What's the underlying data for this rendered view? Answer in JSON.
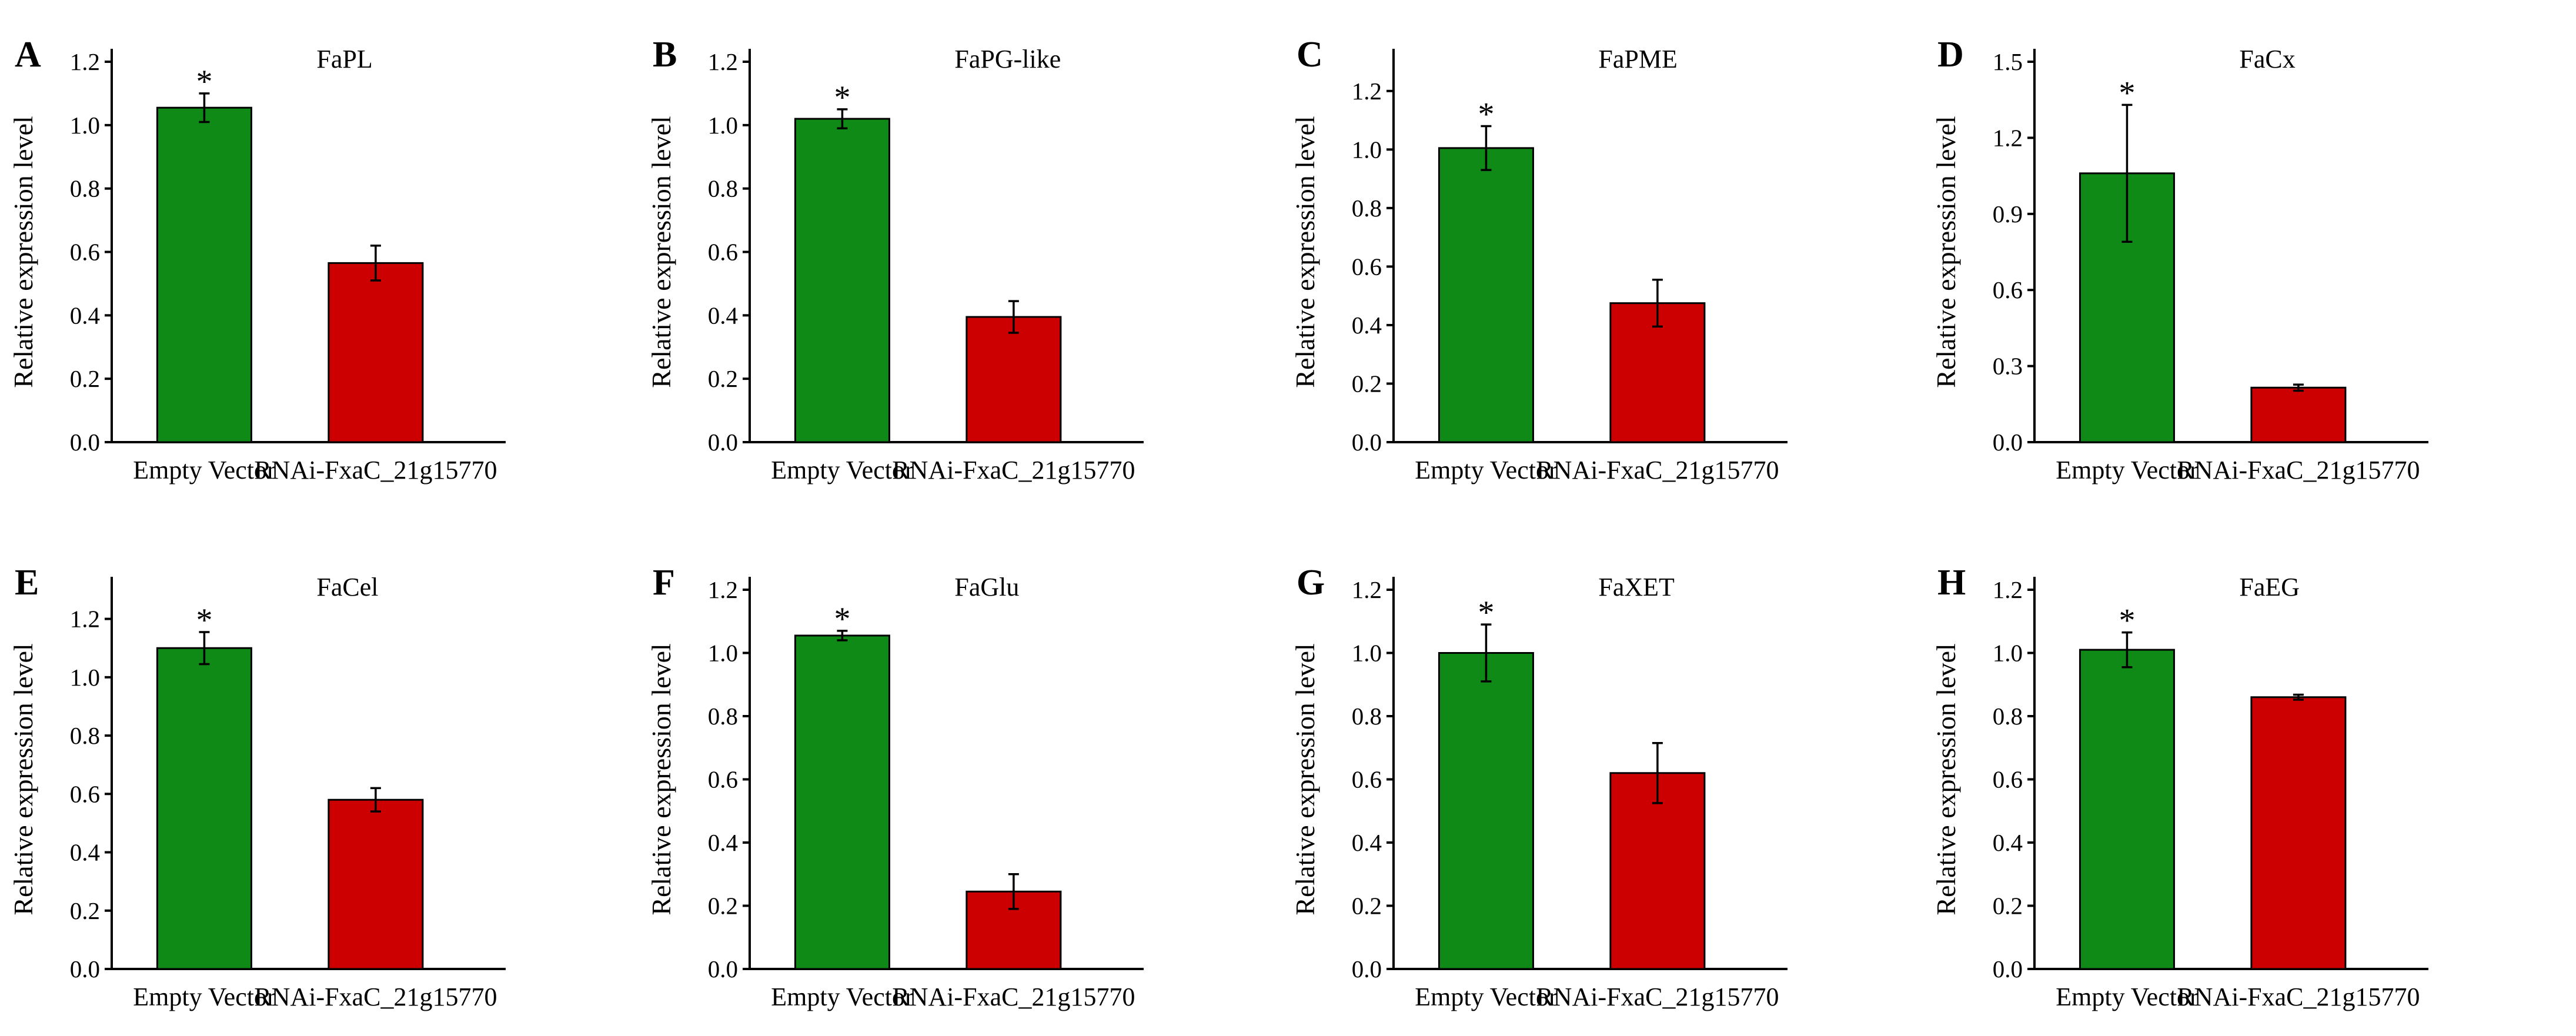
{
  "chart_data": [
    {
      "panel": "A",
      "type": "bar",
      "title": "FaPL",
      "ylabel": "Relative expression level",
      "categories": [
        "Empty Vector",
        "RNAi-FxaC_21g15770"
      ],
      "values": [
        1.055,
        0.565
      ],
      "errors": [
        0.045,
        0.055
      ],
      "colors": [
        "#0f8a16",
        "#cc0000"
      ],
      "significance": [
        "*",
        ""
      ],
      "ylim": [
        0,
        1.2
      ],
      "yticks": [
        0.0,
        0.2,
        0.4,
        0.6,
        0.8,
        1.0,
        1.2
      ],
      "ytick_labels": [
        "0.0",
        "0.2",
        "0.4",
        "0.6",
        "0.8",
        "1.0",
        "1.2"
      ]
    },
    {
      "panel": "B",
      "type": "bar",
      "title": "FaPG-like",
      "ylabel": "Relative expression level",
      "categories": [
        "Empty Vector",
        "RNAi-FxaC_21g15770"
      ],
      "values": [
        1.02,
        0.395
      ],
      "errors": [
        0.03,
        0.05
      ],
      "colors": [
        "#0f8a16",
        "#cc0000"
      ],
      "significance": [
        "*",
        ""
      ],
      "ylim": [
        0,
        1.2
      ],
      "yticks": [
        0.0,
        0.2,
        0.4,
        0.6,
        0.8,
        1.0,
        1.2
      ],
      "ytick_labels": [
        "0.0",
        "0.2",
        "0.4",
        "0.6",
        "0.8",
        "1.0",
        "1.2"
      ]
    },
    {
      "panel": "C",
      "type": "bar",
      "title": "FaPME",
      "ylabel": "Relative expression level",
      "categories": [
        "Empty Vector",
        "RNAi-FxaC_21g15770"
      ],
      "values": [
        1.005,
        0.475
      ],
      "errors": [
        0.075,
        0.08
      ],
      "colors": [
        "#0f8a16",
        "#cc0000"
      ],
      "significance": [
        "*",
        ""
      ],
      "ylim": [
        0,
        1.3
      ],
      "yticks": [
        0.0,
        0.2,
        0.4,
        0.6,
        0.8,
        1.0,
        1.2
      ],
      "ytick_labels": [
        "0.0",
        "0.2",
        "0.4",
        "0.6",
        "0.8",
        "1.0",
        "1.2"
      ]
    },
    {
      "panel": "D",
      "type": "bar",
      "title": "FaCx",
      "ylabel": "Relative expression level",
      "categories": [
        "Empty Vector",
        "RNAi-FxaC_21g15770"
      ],
      "values": [
        1.06,
        0.215
      ],
      "errors": [
        0.27,
        0.012
      ],
      "colors": [
        "#0f8a16",
        "#cc0000"
      ],
      "significance": [
        "*",
        ""
      ],
      "ylim": [
        0,
        1.5
      ],
      "yticks": [
        0.0,
        0.3,
        0.6,
        0.9,
        1.2,
        1.5
      ],
      "ytick_labels": [
        "0.0",
        "0.3",
        "0.6",
        "0.9",
        "1.2",
        "1.5"
      ]
    },
    {
      "panel": "E",
      "type": "bar",
      "title": "FaCel",
      "ylabel": "Relative expression level",
      "categories": [
        "Empty Vector",
        "RNAi-FxaC_21g15770"
      ],
      "values": [
        1.1,
        0.58
      ],
      "errors": [
        0.055,
        0.04
      ],
      "colors": [
        "#0f8a16",
        "#cc0000"
      ],
      "significance": [
        "*",
        ""
      ],
      "ylim": [
        0,
        1.3
      ],
      "yticks": [
        0.0,
        0.2,
        0.4,
        0.6,
        0.8,
        1.0,
        1.2
      ],
      "ytick_labels": [
        "0.0",
        "0.2",
        "0.4",
        "0.6",
        "0.8",
        "1.0",
        "1.2"
      ]
    },
    {
      "panel": "F",
      "type": "bar",
      "title": "FaGlu",
      "ylabel": "Relative expression level",
      "categories": [
        "Empty Vector",
        "RNAi-FxaC_21g15770"
      ],
      "values": [
        1.055,
        0.245
      ],
      "errors": [
        0.015,
        0.055
      ],
      "colors": [
        "#0f8a16",
        "#cc0000"
      ],
      "significance": [
        "*",
        ""
      ],
      "ylim": [
        0,
        1.2
      ],
      "yticks": [
        0.0,
        0.2,
        0.4,
        0.6,
        0.8,
        1.0,
        1.2
      ],
      "ytick_labels": [
        "0.0",
        "0.2",
        "0.4",
        "0.6",
        "0.8",
        "1.0",
        "1.2"
      ]
    },
    {
      "panel": "G",
      "type": "bar",
      "title": "FaXET",
      "ylabel": "Relative expression level",
      "categories": [
        "Empty Vector",
        "RNAi-FxaC_21g15770"
      ],
      "values": [
        1.0,
        0.62
      ],
      "errors": [
        0.09,
        0.095
      ],
      "colors": [
        "#0f8a16",
        "#cc0000"
      ],
      "significance": [
        "*",
        ""
      ],
      "ylim": [
        0,
        1.2
      ],
      "yticks": [
        0.0,
        0.2,
        0.4,
        0.6,
        0.8,
        1.0,
        1.2
      ],
      "ytick_labels": [
        "0.0",
        "0.2",
        "0.4",
        "0.6",
        "0.8",
        "1.0",
        "1.2"
      ]
    },
    {
      "panel": "H",
      "type": "bar",
      "title": "FaEG",
      "ylabel": "Relative expression level",
      "categories": [
        "Empty Vector",
        "RNAi-FxaC_21g15770"
      ],
      "values": [
        1.01,
        0.86
      ],
      "errors": [
        0.055,
        0.008
      ],
      "colors": [
        "#0f8a16",
        "#cc0000"
      ],
      "significance": [
        "*",
        ""
      ],
      "ylim": [
        0,
        1.2
      ],
      "yticks": [
        0.0,
        0.2,
        0.4,
        0.6,
        0.8,
        1.0,
        1.2
      ],
      "ytick_labels": [
        "0.0",
        "0.2",
        "0.4",
        "0.6",
        "0.8",
        "1.0",
        "1.2"
      ]
    }
  ]
}
